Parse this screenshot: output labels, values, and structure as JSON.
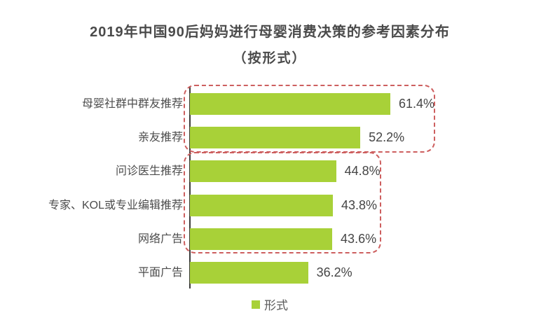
{
  "title": {
    "line1": "2019年中国90后妈妈进行母婴消费决策的参考因素分布",
    "line2": "（按形式）"
  },
  "chart_data": {
    "type": "bar",
    "orientation": "horizontal",
    "title": "2019年中国90后妈妈进行母婴消费决策的参考因素分布（按形式）",
    "categories": [
      "母婴社群中群友推荐",
      "亲友推荐",
      "问诊医生推荐",
      "专家、KOL或专业编辑推荐",
      "网络广告",
      "平面广告"
    ],
    "values": [
      61.4,
      52.2,
      44.8,
      43.8,
      43.6,
      36.2
    ],
    "value_labels": [
      "61.4%",
      "52.2%",
      "44.8%",
      "43.8%",
      "43.6%",
      "36.2%"
    ],
    "xlim": [
      0,
      70
    ],
    "grid": false,
    "legend": {
      "label": "形式",
      "position": "bottom-center"
    },
    "highlight_groups": [
      {
        "rows": [
          0,
          1
        ]
      },
      {
        "rows": [
          2,
          3,
          4
        ]
      }
    ],
    "colors": {
      "bar": "#a8d138",
      "group_outline": "#cd5f5f",
      "axis": "#3c3c3c",
      "label_text": "#4c4c4c",
      "value_text": "#454545",
      "title_text": "#4a4a4a"
    }
  }
}
